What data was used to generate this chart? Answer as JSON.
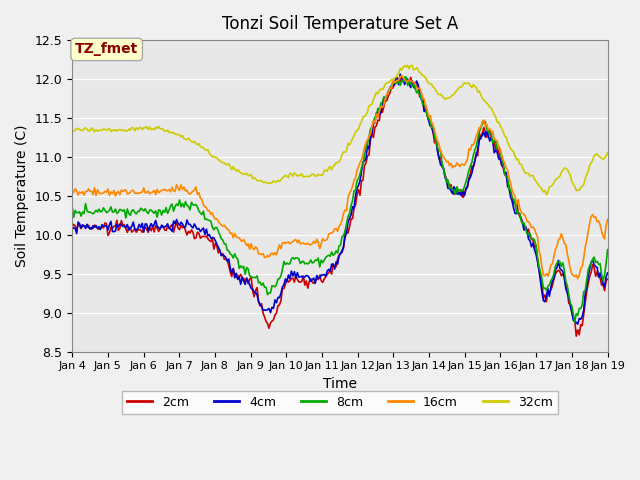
{
  "title": "Tonzi Soil Temperature Set A",
  "xlabel": "Time",
  "ylabel": "Soil Temperature (C)",
  "ylim": [
    8.5,
    12.5
  ],
  "annotation_text": "TZ_fmet",
  "annotation_color": "#8B0000",
  "annotation_bg": "#FFFFCC",
  "bg_color": "#E8E8E8",
  "fig_bg_color": "#F0F0F0",
  "line_colors": {
    "2cm": "#CC0000",
    "4cm": "#0000CC",
    "8cm": "#00AA00",
    "16cm": "#FF8800",
    "32cm": "#CCCC00"
  },
  "xtick_labels": [
    "Jan 4",
    "Jan 5",
    "Jan 6",
    "Jan 7",
    "Jan 8",
    "Jan 9",
    "Jan 10",
    "Jan 11",
    "Jan 12",
    "Jan 13",
    "Jan 14",
    "Jan 15",
    "Jan 16",
    "Jan 17",
    "Jan 18",
    "Jan 19"
  ],
  "n_days": 15,
  "pts_per_day": 24,
  "grid_color": "white",
  "title_fontsize": 12,
  "label_fontsize": 10,
  "tick_fontsize": 8,
  "legend_labels": [
    "2cm",
    "4cm",
    "8cm",
    "16cm",
    "32cm"
  ]
}
